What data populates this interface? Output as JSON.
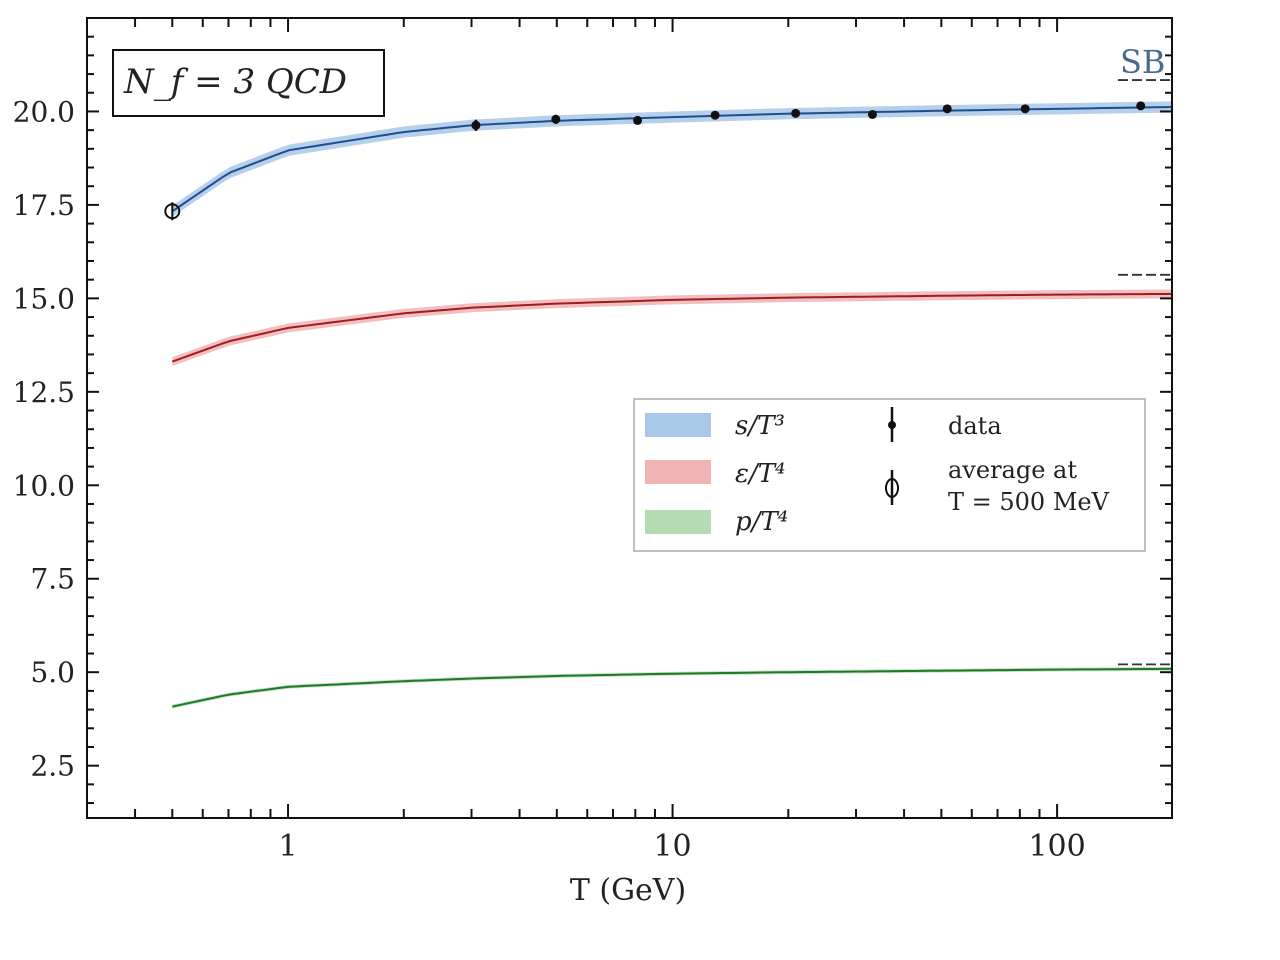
{
  "chart_data": {
    "type": "line",
    "title": "",
    "annotation": "N_f = 3 QCD",
    "sb_label": "SB",
    "xlabel": "T (GeV)",
    "ylabel": "",
    "xscale": "log",
    "xlim": [
      0.3,
      199
    ],
    "ylim": [
      1.1,
      22.5
    ],
    "xticks": [
      {
        "v": 1,
        "label": "1"
      },
      {
        "v": 10,
        "label": "10"
      },
      {
        "v": 100,
        "label": "100"
      }
    ],
    "yticks": [
      {
        "v": 2.5,
        "label": "2.5"
      },
      {
        "v": 5,
        "label": "5.0"
      },
      {
        "v": 7.5,
        "label": "7.5"
      },
      {
        "v": 10,
        "label": "10.0"
      },
      {
        "v": 12.5,
        "label": "12.5"
      },
      {
        "v": 15,
        "label": "15.0"
      },
      {
        "v": 17.5,
        "label": "17.5"
      },
      {
        "v": 20,
        "label": "20.0"
      }
    ],
    "grid": false,
    "legend_placement": "center-right",
    "x": [
      0.5,
      0.7,
      1,
      2,
      3,
      5,
      10,
      20,
      50,
      100,
      200
    ],
    "series": [
      {
        "name": "s/T³",
        "color": "#1f4e8c",
        "band_color": "#a9c8e8",
        "band": 0.15,
        "values": [
          17.33,
          18.35,
          18.96,
          19.45,
          19.63,
          19.75,
          19.85,
          19.94,
          20.02,
          20.07,
          20.12
        ],
        "sb": 20.84
      },
      {
        "name": "ε/T⁴",
        "color": "#a01c22",
        "band_color": "#f0b4b4",
        "band": 0.12,
        "values": [
          13.31,
          13.85,
          14.21,
          14.6,
          14.75,
          14.86,
          14.96,
          15.02,
          15.07,
          15.1,
          15.12
        ],
        "sb": 15.63
      },
      {
        "name": "p/T⁴",
        "color": "#1f7a2c",
        "band_color": "#b4dcb4",
        "band": 0.05,
        "values": [
          4.08,
          4.4,
          4.61,
          4.76,
          4.83,
          4.9,
          4.96,
          5.0,
          5.04,
          5.07,
          5.09
        ],
        "sb": 5.21
      }
    ],
    "data_points": {
      "name": "data",
      "x": [
        3.08,
        4.97,
        8.11,
        12.9,
        20.9,
        33.1,
        51.8,
        82.6,
        165
      ],
      "y": [
        19.63,
        19.79,
        19.76,
        19.9,
        19.95,
        19.92,
        20.07,
        20.07,
        20.15
      ],
      "err": [
        0.15,
        0.12,
        0.08,
        0.08,
        0.05,
        0.05,
        0.05,
        0.05,
        0.05
      ]
    },
    "average_point": {
      "name_line1": "average at",
      "name_line2": "T = 500 MeV",
      "x": 0.5,
      "y": 17.33,
      "err": 0.12
    }
  }
}
